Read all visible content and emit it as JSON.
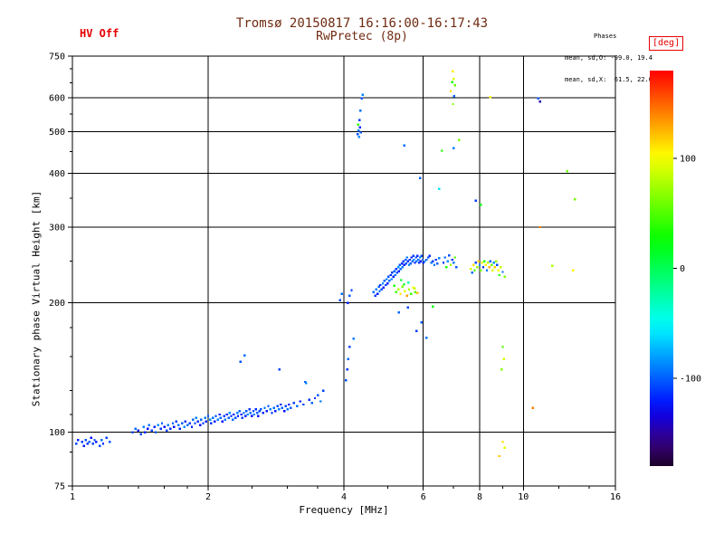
{
  "colors": {
    "accent_red": "#e60000",
    "title_text": "#6e2a10",
    "axis_text": "#000000",
    "grid": "#000000",
    "background": "#ffffff"
  },
  "header": {
    "hv_status": "HV Off",
    "title": "Tromsø 20150817 16:16:00-16:17:43",
    "subtitle": "RwPretec (8p)",
    "phases_label": "Phases",
    "phases_o": "mean, sd,O: -99.0, 19.4",
    "phases_x": "mean, sd,X:  61.5, 22.0"
  },
  "chart_data": {
    "type": "scatter",
    "title": "Tromsø 20150817 16:16:00-16:17:43",
    "subtitle": "RwPretec (8p)",
    "xlabel": "Frequency [MHz]",
    "ylabel": "Stationary phase Virtual Height [km]",
    "x_scale": "log",
    "y_scale": "log",
    "xlim": [
      1,
      16
    ],
    "ylim": [
      75,
      750
    ],
    "x_ticks": [
      1,
      2,
      4,
      6,
      8,
      10,
      16
    ],
    "x_minor_ticks": [
      1.2,
      1.4,
      1.6,
      1.8,
      2.5,
      3,
      3.5,
      5,
      7,
      9,
      12,
      14
    ],
    "x_gridlines": [
      2,
      4,
      6,
      8,
      10
    ],
    "y_ticks": [
      75,
      100,
      200,
      300,
      400,
      500,
      600,
      750
    ],
    "y_minor_ticks": [
      90,
      110,
      125,
      150,
      175,
      250,
      350,
      450,
      550,
      650,
      700
    ],
    "y_gridlines": [
      100,
      200,
      300,
      400,
      500,
      600
    ],
    "grid": true,
    "colorbar": {
      "label": "[deg]",
      "ticks": [
        100,
        0,
        -100
      ],
      "range": [
        -180,
        180
      ],
      "colormap": "rainbow: red=+180deg, yellow=+100, green=0, blue=-100, black=-180"
    },
    "point_fields": [
      "frequency_MHz",
      "virtual_height_km",
      "phase_deg"
    ],
    "points": [
      [
        1.02,
        94,
        -108
      ],
      [
        1.03,
        96,
        -118
      ],
      [
        1.05,
        95,
        -112
      ],
      [
        1.06,
        93,
        -122
      ],
      [
        1.07,
        96,
        -104
      ],
      [
        1.08,
        94,
        -116
      ],
      [
        1.09,
        95,
        -98
      ],
      [
        1.1,
        97,
        -124
      ],
      [
        1.11,
        94,
        -110
      ],
      [
        1.12,
        96,
        -102
      ],
      [
        1.13,
        95,
        -119
      ],
      [
        1.15,
        93,
        -107
      ],
      [
        1.16,
        96,
        -96
      ],
      [
        1.17,
        94,
        -114
      ],
      [
        1.19,
        97,
        -109
      ],
      [
        1.21,
        95,
        -101
      ],
      [
        1.36,
        100,
        -110
      ],
      [
        1.38,
        102,
        -96
      ],
      [
        1.4,
        101,
        -121
      ],
      [
        1.42,
        99,
        -106
      ],
      [
        1.44,
        103,
        -89
      ],
      [
        1.45,
        100,
        -116
      ],
      [
        1.47,
        102,
        -126
      ],
      [
        1.48,
        104,
        -93
      ],
      [
        1.5,
        101,
        -109
      ],
      [
        1.52,
        103,
        -119
      ],
      [
        1.53,
        100,
        -101
      ],
      [
        1.55,
        104,
        -86
      ],
      [
        1.57,
        102,
        -113
      ],
      [
        1.58,
        105,
        -97
      ],
      [
        1.6,
        103,
        -123
      ],
      [
        1.62,
        101,
        -106
      ],
      [
        1.63,
        104,
        -91
      ],
      [
        1.65,
        102,
        -116
      ],
      [
        1.67,
        105,
        -99
      ],
      [
        1.68,
        103,
        -126
      ],
      [
        1.7,
        106,
        -109
      ],
      [
        1.72,
        104,
        -93
      ],
      [
        1.73,
        102,
        -119
      ],
      [
        1.75,
        105,
        -101
      ],
      [
        1.77,
        103,
        -86
      ],
      [
        1.78,
        106,
        -113
      ],
      [
        1.8,
        104,
        -96
      ],
      [
        1.82,
        105,
        -110
      ],
      [
        1.84,
        103,
        -120
      ],
      [
        1.85,
        107,
        -96
      ],
      [
        1.87,
        105,
        -106
      ],
      [
        1.88,
        108,
        -89
      ],
      [
        1.9,
        106,
        -116
      ],
      [
        1.92,
        104,
        -126
      ],
      [
        1.93,
        107,
        -99
      ],
      [
        1.95,
        105,
        -110
      ],
      [
        1.97,
        108,
        -93
      ],
      [
        1.98,
        106,
        -119
      ],
      [
        2.0,
        109,
        -103
      ],
      [
        2.02,
        107,
        -86
      ],
      [
        2.03,
        105,
        -113
      ],
      [
        2.05,
        108,
        -96
      ],
      [
        2.07,
        106,
        -123
      ],
      [
        2.08,
        109,
        -106
      ],
      [
        2.1,
        107,
        -91
      ],
      [
        2.12,
        110,
        -116
      ],
      [
        2.13,
        108,
        -99
      ],
      [
        2.15,
        106,
        -126
      ],
      [
        2.17,
        109,
        -109
      ],
      [
        2.18,
        107,
        -93
      ],
      [
        2.2,
        110,
        -119
      ],
      [
        2.22,
        108,
        -101
      ],
      [
        2.23,
        111,
        -86
      ],
      [
        2.25,
        109,
        -113
      ],
      [
        2.27,
        107,
        -96
      ],
      [
        2.28,
        110,
        -121
      ],
      [
        2.3,
        108,
        -106
      ],
      [
        2.32,
        111,
        -89
      ],
      [
        2.33,
        109,
        -116
      ],
      [
        2.35,
        112,
        -99
      ],
      [
        2.37,
        110,
        -126
      ],
      [
        2.38,
        108,
        -109
      ],
      [
        2.4,
        111,
        -93
      ],
      [
        2.42,
        109,
        -119
      ],
      [
        2.43,
        112,
        -103
      ],
      [
        2.45,
        110,
        -86
      ],
      [
        2.47,
        113,
        -113
      ],
      [
        2.48,
        111,
        -96
      ],
      [
        2.5,
        109,
        -123
      ],
      [
        2.52,
        112,
        -106
      ],
      [
        2.53,
        110,
        -91
      ],
      [
        2.55,
        113,
        -116
      ],
      [
        2.57,
        111,
        -99
      ],
      [
        2.58,
        109,
        -126
      ],
      [
        2.6,
        112,
        -109
      ],
      [
        2.62,
        113,
        -101
      ],
      [
        2.65,
        111,
        -116
      ],
      [
        2.67,
        114,
        -93
      ],
      [
        2.7,
        112,
        -119
      ],
      [
        2.72,
        115,
        -103
      ],
      [
        2.75,
        113,
        -89
      ],
      [
        2.77,
        111,
        -113
      ],
      [
        2.8,
        114,
        -96
      ],
      [
        2.82,
        112,
        -121
      ],
      [
        2.85,
        115,
        -106
      ],
      [
        2.87,
        113,
        -91
      ],
      [
        2.9,
        116,
        -116
      ],
      [
        2.92,
        114,
        -99
      ],
      [
        2.95,
        112,
        -126
      ],
      [
        2.97,
        115,
        -109
      ],
      [
        3.0,
        113,
        -93
      ],
      [
        3.02,
        116,
        -119
      ],
      [
        3.05,
        114,
        -101
      ],
      [
        3.1,
        117,
        -110
      ],
      [
        3.15,
        115,
        -96
      ],
      [
        3.2,
        118,
        -121
      ],
      [
        3.25,
        116,
        -106
      ],
      [
        3.3,
        130,
        -89
      ],
      [
        3.35,
        119,
        -113
      ],
      [
        3.4,
        117,
        -99
      ],
      [
        3.45,
        120,
        -116
      ],
      [
        3.5,
        122,
        -103
      ],
      [
        3.55,
        118,
        -91
      ],
      [
        3.6,
        125,
        -109
      ],
      [
        2.36,
        146,
        -104
      ],
      [
        2.41,
        151,
        -97
      ],
      [
        3.28,
        131,
        -99
      ],
      [
        2.88,
        140,
        -108
      ],
      [
        4.04,
        132,
        -103
      ],
      [
        4.07,
        140,
        -112
      ],
      [
        4.09,
        148,
        -96
      ],
      [
        4.12,
        158,
        -107
      ],
      [
        4.08,
        200,
        -118
      ],
      [
        4.12,
        208,
        -99
      ],
      [
        4.16,
        214,
        -110
      ],
      [
        4.2,
        165,
        -92
      ],
      [
        3.92,
        203,
        -105
      ],
      [
        3.96,
        210,
        -95
      ],
      [
        4.65,
        212,
        -96
      ],
      [
        4.7,
        208,
        -111
      ],
      [
        4.72,
        215,
        -89
      ],
      [
        4.75,
        210,
        -121
      ],
      [
        4.78,
        218,
        -101
      ],
      [
        4.8,
        213,
        -93
      ],
      [
        4.82,
        220,
        -116
      ],
      [
        4.85,
        215,
        -106
      ],
      [
        4.88,
        222,
        -86
      ],
      [
        4.9,
        217,
        -119
      ],
      [
        4.92,
        225,
        -99
      ],
      [
        4.95,
        220,
        -111
      ],
      [
        4.98,
        227,
        -91
      ],
      [
        5.0,
        222,
        -123
      ],
      [
        5.02,
        230,
        -103
      ],
      [
        5.05,
        225,
        -96
      ],
      [
        5.08,
        232,
        -116
      ],
      [
        5.1,
        227,
        -89
      ],
      [
        5.12,
        235,
        -109
      ],
      [
        5.15,
        230,
        -121
      ],
      [
        5.18,
        237,
        -99
      ],
      [
        5.2,
        232,
        -93
      ],
      [
        5.22,
        240,
        -113
      ],
      [
        5.25,
        235,
        -106
      ],
      [
        5.28,
        242,
        -86
      ],
      [
        5.3,
        237,
        -119
      ],
      [
        5.32,
        245,
        -101
      ],
      [
        5.35,
        240,
        -96
      ],
      [
        5.38,
        247,
        -116
      ],
      [
        5.4,
        242,
        -91
      ],
      [
        5.42,
        250,
        -109
      ],
      [
        5.45,
        245,
        -123
      ],
      [
        5.48,
        252,
        -99
      ],
      [
        5.5,
        247,
        -106
      ],
      [
        5.52,
        255,
        -93
      ],
      [
        5.55,
        250,
        -116
      ],
      [
        5.58,
        245,
        -89
      ],
      [
        5.6,
        252,
        -111
      ],
      [
        5.62,
        247,
        -101
      ],
      [
        5.65,
        255,
        -121
      ],
      [
        5.68,
        250,
        -96
      ],
      [
        5.7,
        257,
        -109
      ],
      [
        5.72,
        252,
        -86
      ],
      [
        5.75,
        248,
        -119
      ],
      [
        5.78,
        255,
        -103
      ],
      [
        5.8,
        250,
        -93
      ],
      [
        5.82,
        257,
        -116
      ],
      [
        5.85,
        252,
        -99
      ],
      [
        5.88,
        248,
        -111
      ],
      [
        5.9,
        255,
        -89
      ],
      [
        5.92,
        250,
        -123
      ],
      [
        5.95,
        257,
        -106
      ],
      [
        5.98,
        252,
        -96
      ],
      [
        6.0,
        248,
        -116
      ],
      [
        6.05,
        250,
        -91
      ],
      [
        6.1,
        252,
        -99
      ],
      [
        6.15,
        255,
        -106
      ],
      [
        6.2,
        257,
        -116
      ],
      [
        6.25,
        248,
        -93
      ],
      [
        6.3,
        250,
        -109
      ],
      [
        6.35,
        245,
        -96
      ],
      [
        6.4,
        252,
        -113
      ],
      [
        6.45,
        247,
        -101
      ],
      [
        6.5,
        254,
        -89
      ],
      [
        5.22,
        212,
        46
      ],
      [
        5.28,
        215,
        82
      ],
      [
        5.34,
        210,
        112
      ],
      [
        5.4,
        218,
        62
      ],
      [
        5.46,
        213,
        96
      ],
      [
        5.52,
        208,
        132
      ],
      [
        5.58,
        215,
        76
      ],
      [
        5.64,
        210,
        42
      ],
      [
        5.7,
        217,
        102
      ],
      [
        5.76,
        212,
        56
      ],
      [
        5.44,
        221,
        22
      ],
      [
        5.56,
        223,
        -28
      ],
      [
        5.36,
        226,
        12
      ],
      [
        5.74,
        216,
        86
      ],
      [
        5.82,
        211,
        122
      ],
      [
        5.18,
        219,
        36
      ],
      [
        5.95,
        180,
        -101
      ],
      [
        5.8,
        172,
        -112
      ],
      [
        6.1,
        166,
        -92
      ],
      [
        5.55,
        195,
        -107
      ],
      [
        6.3,
        196,
        24
      ],
      [
        5.3,
        190,
        -98
      ],
      [
        6.65,
        248,
        -111
      ],
      [
        6.7,
        255,
        -96
      ],
      [
        6.75,
        242,
        32
      ],
      [
        6.8,
        250,
        -86
      ],
      [
        6.85,
        258,
        -106
      ],
      [
        6.9,
        245,
        72
      ],
      [
        6.95,
        252,
        -116
      ],
      [
        7.0,
        248,
        -91
      ],
      [
        7.05,
        255,
        52
      ],
      [
        7.1,
        242,
        -101
      ],
      [
        7.65,
        240,
        92
      ],
      [
        7.7,
        235,
        -96
      ],
      [
        7.75,
        245,
        112
      ],
      [
        7.8,
        238,
        46
      ],
      [
        7.85,
        248,
        -106
      ],
      [
        7.9,
        242,
        76
      ],
      [
        7.95,
        250,
        122
      ],
      [
        8.0,
        245,
        -89
      ],
      [
        8.05,
        238,
        62
      ],
      [
        8.1,
        248,
        96
      ],
      [
        8.15,
        242,
        -111
      ],
      [
        8.2,
        250,
        36
      ],
      [
        8.25,
        245,
        106
      ],
      [
        8.3,
        238,
        -93
      ],
      [
        8.35,
        248,
        82
      ],
      [
        8.4,
        242,
        126
      ],
      [
        8.45,
        250,
        -101
      ],
      [
        8.5,
        245,
        56
      ],
      [
        8.55,
        238,
        92
      ],
      [
        8.6,
        248,
        -86
      ],
      [
        8.65,
        242,
        116
      ],
      [
        8.7,
        250,
        72
      ],
      [
        8.75,
        245,
        -106
      ],
      [
        8.8,
        238,
        102
      ],
      [
        8.85,
        232,
        42
      ],
      [
        8.9,
        242,
        86
      ],
      [
        9.0,
        236,
        -96
      ],
      [
        9.1,
        230,
        66
      ],
      [
        4.29,
        494,
        -106
      ],
      [
        4.31,
        503,
        -96
      ],
      [
        4.34,
        512,
        -116
      ],
      [
        4.32,
        487,
        -86
      ],
      [
        4.3,
        520,
        42
      ],
      [
        4.36,
        498,
        -101
      ],
      [
        4.33,
        532,
        -111
      ],
      [
        4.35,
        560,
        -94
      ],
      [
        4.38,
        598,
        -102
      ],
      [
        4.4,
        610,
        -88
      ],
      [
        6.95,
        652,
        32
      ],
      [
        7.0,
        664,
        92
      ],
      [
        7.05,
        641,
        56
      ],
      [
        6.9,
        622,
        112
      ],
      [
        7.02,
        605,
        -96
      ],
      [
        6.98,
        580,
        66
      ],
      [
        6.97,
        692,
        108
      ],
      [
        8.45,
        602,
        102
      ],
      [
        10.8,
        598,
        -101
      ],
      [
        10.9,
        588,
        -146
      ],
      [
        7.2,
        478,
        62
      ],
      [
        7.0,
        458,
        -91
      ],
      [
        6.6,
        452,
        36
      ],
      [
        5.45,
        465,
        -96
      ],
      [
        5.9,
        390,
        -101
      ],
      [
        6.5,
        368,
        -58
      ],
      [
        7.85,
        346,
        -111
      ],
      [
        8.05,
        338,
        22
      ],
      [
        10.9,
        300,
        142
      ],
      [
        13.0,
        348,
        62
      ],
      [
        12.5,
        405,
        58
      ],
      [
        11.6,
        244,
        76
      ],
      [
        12.9,
        238,
        102
      ],
      [
        9.0,
        158,
        52
      ],
      [
        9.06,
        148,
        92
      ],
      [
        8.95,
        140,
        66
      ],
      [
        9.0,
        95,
        112
      ],
      [
        9.1,
        92,
        96
      ],
      [
        8.85,
        88,
        120
      ],
      [
        10.5,
        114,
        142
      ]
    ]
  }
}
